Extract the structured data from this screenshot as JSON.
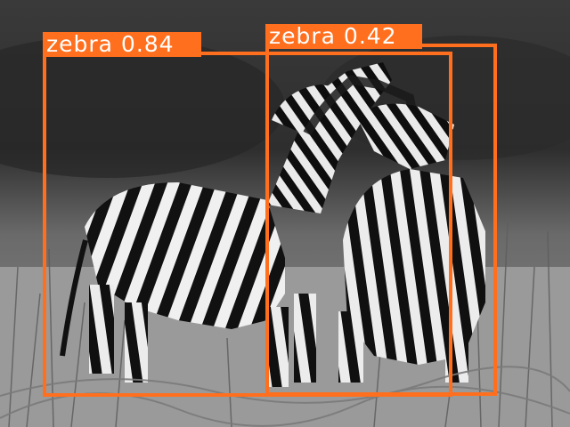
{
  "image": {
    "description_colors": {
      "box": "#ff6f1e",
      "label_text": "#ffffff"
    }
  },
  "detections": [
    {
      "label": "zebra 0.84"
    },
    {
      "label": "zebra 0.42"
    }
  ]
}
